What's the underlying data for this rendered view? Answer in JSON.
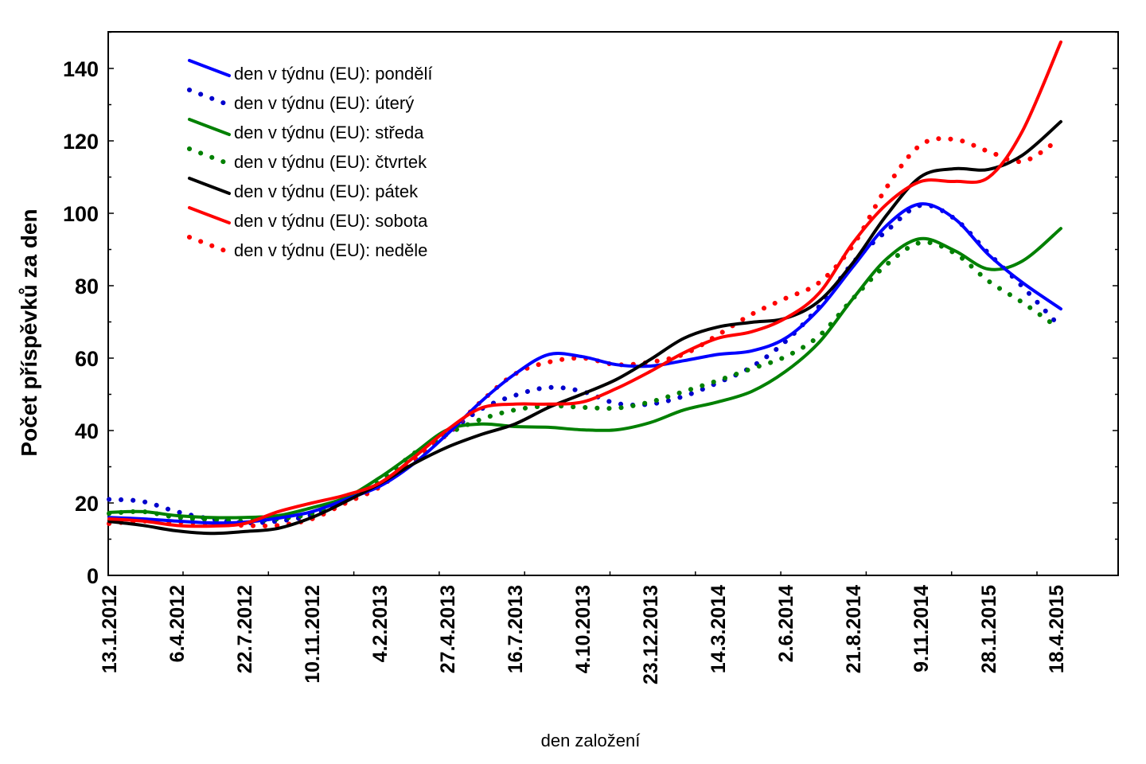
{
  "chart_data": {
    "type": "line",
    "title": "",
    "xlabel": "den založení",
    "ylabel": "Počet příspěvků za den",
    "ylim": [
      0,
      150
    ],
    "yticks": [
      0,
      20,
      40,
      60,
      80,
      100,
      120,
      140
    ],
    "yminor_step": 10,
    "grid": false,
    "legend_position": "top-left",
    "categories": [
      "13.1.2012",
      "6.4.2012",
      "22.7.2012",
      "10.11.2012",
      "4.2.2013",
      "27.4.2013",
      "16.7.2013",
      "4.10.2013",
      "23.12.2013",
      "14.3.2014",
      "2.6.2014",
      "21.8.2014",
      "9.11.2014",
      "28.1.2015",
      "18.4.2015"
    ],
    "x_note": "values sampled at each category label and midway between labels (29 samples)",
    "series": [
      {
        "name": "den v týdnu (EU): pondělí",
        "color": "#0000ff",
        "style": "solid",
        "values": [
          16,
          15.6,
          15,
          14.5,
          14.7,
          15.8,
          17.6,
          21,
          24.6,
          30.8,
          39,
          48,
          55.6,
          61,
          60.4,
          58.2,
          57.8,
          59.3,
          61,
          62,
          65.5,
          73.6,
          85.3,
          96.7,
          102.6,
          98.5,
          88.6,
          80.9,
          73.6
        ]
      },
      {
        "name": "den v týdnu (EU): úterý",
        "color": "#0000cc",
        "style": "dotted",
        "values": [
          21,
          20.4,
          17.6,
          15.6,
          14.5,
          15,
          16.7,
          21,
          25.3,
          31.4,
          39,
          45.9,
          49.7,
          51.9,
          50.8,
          47.5,
          47.3,
          49.5,
          53.2,
          57.6,
          64.6,
          74.3,
          86.4,
          95.2,
          102.2,
          98.5,
          89,
          79.8,
          69.9
        ]
      },
      {
        "name": "den v týdnu (EU): středa",
        "color": "#008000",
        "style": "solid",
        "values": [
          17.4,
          17.6,
          16.5,
          16,
          16,
          16.5,
          18.7,
          21.5,
          27,
          33.6,
          40.2,
          41.8,
          41.1,
          40.9,
          40.2,
          40.2,
          42.2,
          45.7,
          47.9,
          50.8,
          56.3,
          64.4,
          76.5,
          87.5,
          93,
          89.7,
          84.6,
          86.8,
          95.8
        ]
      },
      {
        "name": "den v týdnu (EU): čtvrtek",
        "color": "#008000",
        "style": "dotted",
        "values": [
          17.1,
          17.6,
          16,
          15.4,
          15,
          15.6,
          17.1,
          21,
          25.9,
          33.6,
          39,
          43.1,
          45.7,
          46.8,
          46.4,
          46.2,
          47.9,
          50.8,
          53.8,
          57.1,
          60.4,
          66.2,
          76.5,
          85.9,
          91.9,
          89,
          81.3,
          75.4,
          68.8
        ]
      },
      {
        "name": "den v týdnu (EU): pátek",
        "color": "#000000",
        "style": "solid",
        "values": [
          14.9,
          13.8,
          12.3,
          11.6,
          12.1,
          13,
          16,
          20.4,
          25.3,
          30.8,
          35.4,
          38.9,
          41.8,
          46.4,
          50.1,
          54.1,
          59.6,
          65.5,
          68.6,
          69.9,
          71,
          75.8,
          86.4,
          99.6,
          110.1,
          112.3,
          112.1,
          116,
          125.3
        ]
      },
      {
        "name": "den v týdnu (EU): sobota",
        "color": "#ff0000",
        "style": "solid",
        "values": [
          15.6,
          15,
          13.8,
          13.6,
          14.3,
          17.6,
          20,
          22.2,
          25.5,
          32.5,
          40.2,
          46.2,
          47.3,
          47.3,
          47.9,
          51.6,
          56.3,
          61.5,
          65.5,
          67.3,
          71,
          78,
          91.9,
          102.6,
          108.8,
          108.8,
          109.9,
          122.6,
          147.3
        ]
      },
      {
        "name": "den v týdnu (EU): neděle",
        "color": "#ff0000",
        "style": "dotted",
        "values": [
          14.3,
          15,
          14.7,
          14.3,
          13.8,
          13.8,
          15.6,
          20,
          24.4,
          31.9,
          39,
          48,
          55.6,
          58.9,
          60,
          58.2,
          58.9,
          61.1,
          66.4,
          72.1,
          76.5,
          80.9,
          91.2,
          107.3,
          118.9,
          120.4,
          117.1,
          114.3,
          119.8
        ]
      }
    ]
  }
}
